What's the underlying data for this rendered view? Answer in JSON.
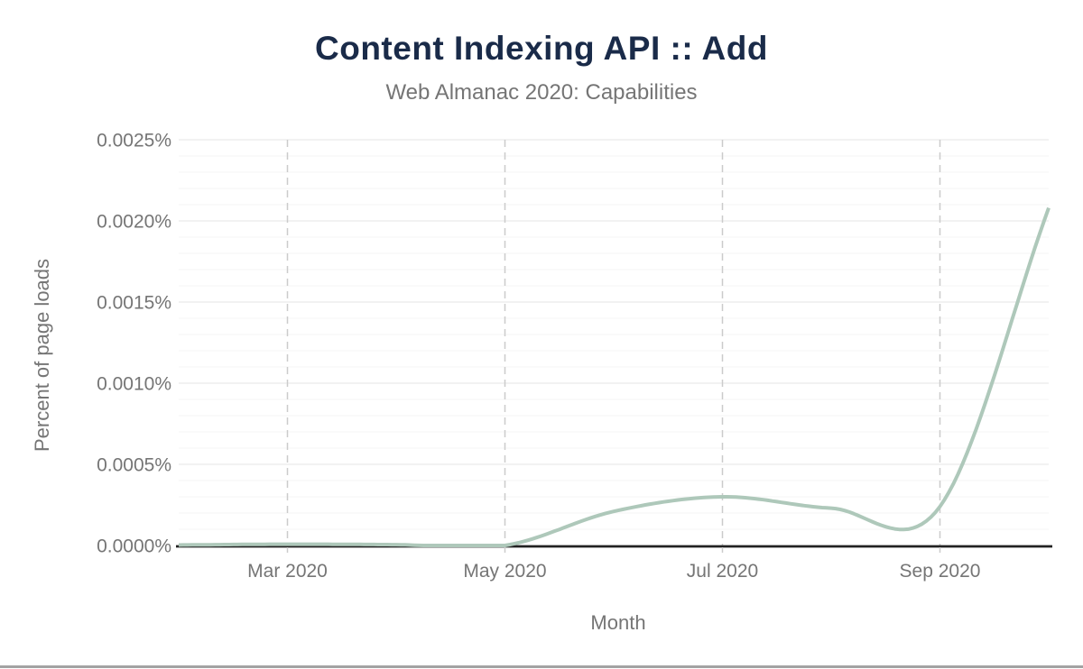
{
  "page": {
    "background": "#ffffff",
    "bottom_bar_color": "#a3a3a3"
  },
  "chart_data": {
    "type": "line",
    "title": "Content Indexing API :: Add",
    "subtitle": "Web Almanac 2020: Capabilities",
    "xlabel": "Month",
    "ylabel": "Percent of page loads",
    "unit": "%",
    "x": [
      "Feb 2020",
      "Mar 2020",
      "Apr 2020",
      "May 2020",
      "Jun 2020",
      "Jul 2020",
      "Aug 2020",
      "Sep 2020",
      "Oct 2020"
    ],
    "series": [
      {
        "name": "Content Indexing API :: Add",
        "values": [
          3e-06,
          8e-06,
          5e-06,
          0,
          0.00021,
          0.0003,
          0.00023,
          0.00024,
          0.00208
        ],
        "color": "#aec8ba"
      }
    ],
    "ylim": [
      0,
      0.0025
    ],
    "y_tick_values": [
      0,
      0.0005,
      0.001,
      0.0015,
      0.002,
      0.0025
    ],
    "y_tick_labels": [
      "0.0000%",
      "0.0005%",
      "0.0010%",
      "0.0015%",
      "0.0020%",
      "0.0025%"
    ],
    "y_minor_step": 0.0001,
    "x_tick_indices": [
      1,
      3,
      5,
      7
    ],
    "x_tick_labels": [
      "Mar 2020",
      "May 2020",
      "Jul 2020",
      "Sep 2020"
    ],
    "grid": {
      "horizontal": "minor+major",
      "vertical": "dashed-at-ticks"
    },
    "legend": "none",
    "curve": "smooth-spline-clipped-at-zero"
  },
  "colors": {
    "title": "#1a2b49",
    "subtitle": "#757575",
    "axis_text": "#757575",
    "axis_line": "#222222",
    "gridline_major": "#ebebeb",
    "gridline_minor": "#f6f6f6",
    "gridline_dashed": "#cbcbcb",
    "series_line": "#aec8ba"
  }
}
